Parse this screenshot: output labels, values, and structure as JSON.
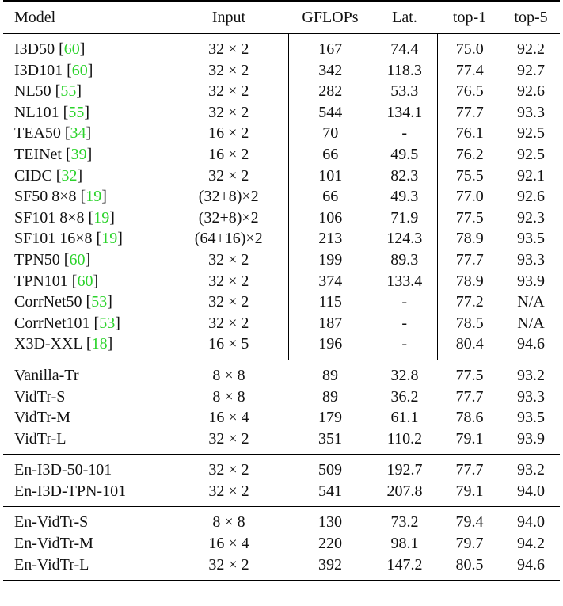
{
  "header": {
    "model": "Model",
    "input": "Input",
    "gflops": "GFLOPs",
    "lat": "Lat.",
    "top1": "top-1",
    "top5": "top-5"
  },
  "groups": [
    {
      "rows": [
        {
          "model": "I3D50 [",
          "cite": "60",
          "close": "]",
          "input": "32 × 2",
          "gflops": "167",
          "lat": "74.4",
          "top1": "75.0",
          "top5": "92.2"
        },
        {
          "model": "I3D101 [",
          "cite": "60",
          "close": "]",
          "input": "32 × 2",
          "gflops": "342",
          "lat": "118.3",
          "top1": "77.4",
          "top5": "92.7"
        },
        {
          "model": "NL50 [",
          "cite": "55",
          "close": "]",
          "input": "32 × 2",
          "gflops": "282",
          "lat": "53.3",
          "top1": "76.5",
          "top5": "92.6"
        },
        {
          "model": "NL101 [",
          "cite": "55",
          "close": "]",
          "input": "32 × 2",
          "gflops": "544",
          "lat": "134.1",
          "top1": "77.7",
          "top5": "93.3"
        },
        {
          "model": "TEA50 [",
          "cite": "34",
          "close": "]",
          "input": "16 × 2",
          "gflops": "70",
          "lat": "-",
          "top1": "76.1",
          "top5": "92.5"
        },
        {
          "model": "TEINet [",
          "cite": "39",
          "close": "]",
          "input": "16 × 2",
          "gflops": "66",
          "lat": "49.5",
          "top1": "76.2",
          "top5": "92.5"
        },
        {
          "model": "CIDC [",
          "cite": "32",
          "close": "]",
          "input": "32 × 2",
          "gflops": "101",
          "lat": "82.3",
          "top1": "75.5",
          "top5": "92.1"
        },
        {
          "model": "SF50 8×8 [",
          "cite": "19",
          "close": "]",
          "input": "(32+8)×2",
          "gflops": "66",
          "lat": "49.3",
          "top1": "77.0",
          "top5": "92.6"
        },
        {
          "model": "SF101 8×8 [",
          "cite": "19",
          "close": "]",
          "input": "(32+8)×2",
          "gflops": "106",
          "lat": "71.9",
          "top1": "77.5",
          "top5": "92.3"
        },
        {
          "model": "SF101 16×8 [",
          "cite": "19",
          "close": "]",
          "input": "(64+16)×2",
          "gflops": "213",
          "lat": "124.3",
          "top1": "78.9",
          "top5": "93.5"
        },
        {
          "model": "TPN50 [",
          "cite": "60",
          "close": "]",
          "input": "32 × 2",
          "gflops": "199",
          "lat": "89.3",
          "top1": "77.7",
          "top5": "93.3"
        },
        {
          "model": "TPN101 [",
          "cite": "60",
          "close": "]",
          "input": "32 × 2",
          "gflops": "374",
          "lat": "133.4",
          "top1": "78.9",
          "top5": "93.9"
        },
        {
          "model": "CorrNet50 [",
          "cite": "53",
          "close": "]",
          "input": "32 × 2",
          "gflops": "115",
          "lat": "-",
          "top1": "77.2",
          "top5": "N/A"
        },
        {
          "model": "CorrNet101 [",
          "cite": "53",
          "close": "]",
          "input": "32 × 2",
          "gflops": "187",
          "lat": "-",
          "top1": "78.5",
          "top5": "N/A"
        },
        {
          "model": "X3D-XXL [",
          "cite": "18",
          "close": "]",
          "input": "16 × 5",
          "gflops": "196",
          "lat": "-",
          "top1": "80.4",
          "top5": "94.6"
        }
      ]
    },
    {
      "rows": [
        {
          "model": "Vanilla-Tr",
          "input": "8 × 8",
          "gflops": "89",
          "lat": "32.8",
          "top1": "77.5",
          "top5": "93.2"
        },
        {
          "model": "VidTr-S",
          "input": "8 × 8",
          "gflops": "89",
          "lat": "36.2",
          "top1": "77.7",
          "top5": "93.3"
        },
        {
          "model": "VidTr-M",
          "input": "16 × 4",
          "gflops": "179",
          "lat": "61.1",
          "top1": "78.6",
          "top5": "93.5"
        },
        {
          "model": "VidTr-L",
          "input": "32 × 2",
          "gflops": "351",
          "lat": "110.2",
          "top1": "79.1",
          "top5": "93.9"
        }
      ]
    },
    {
      "rows": [
        {
          "model": "En-I3D-50-101",
          "input": "32 × 2",
          "gflops": "509",
          "lat": "192.7",
          "top1": "77.7",
          "top5": "93.2"
        },
        {
          "model": "En-I3D-TPN-101",
          "input": "32 × 2",
          "gflops": "541",
          "lat": "207.8",
          "top1": "79.1",
          "top5": "94.0"
        }
      ]
    },
    {
      "rows": [
        {
          "model": "En-VidTr-S",
          "input": "8 × 8",
          "gflops": "130",
          "lat": "73.2",
          "top1": "79.4",
          "top5": "94.0"
        },
        {
          "model": "En-VidTr-M",
          "input": "16 × 4",
          "gflops": "220",
          "lat": "98.1",
          "top1": "79.7",
          "top5": "94.2"
        },
        {
          "model": "En-VidTr-L",
          "input": "32 × 2",
          "gflops": "392",
          "lat": "147.2",
          "top1": "80.5",
          "top5": "94.6"
        }
      ]
    }
  ]
}
